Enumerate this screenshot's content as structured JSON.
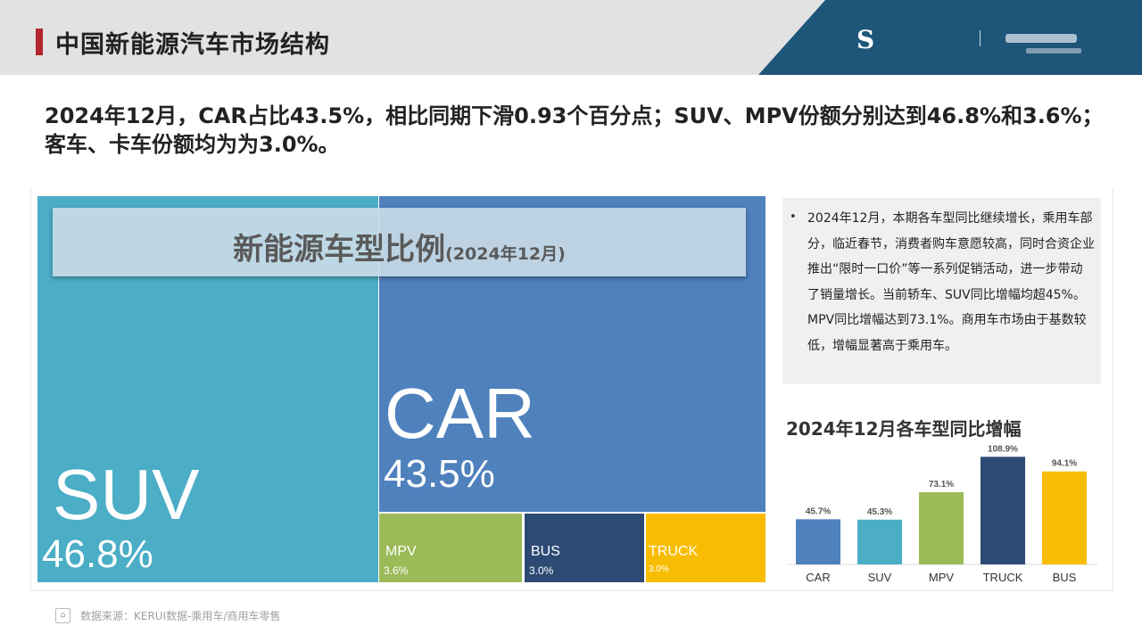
{
  "header": {
    "title": "中国新能源汽车市场结构",
    "logo_mark": "S"
  },
  "headline": "2024年12月，CAR占比43.5%，相比同期下滑0.93个百分点；SUV、MPV份额分别达到46.8%和3.6%；客车、卡车份额均为为3.0%。",
  "treemap": {
    "title": "新能源车型比例",
    "subtitle": "(2024年12月)",
    "tiles": [
      {
        "name": "SUV",
        "pct": "46.8%",
        "value": 46.8,
        "color": "#4badc6"
      },
      {
        "name": "CAR",
        "pct": "43.5%",
        "value": 43.5,
        "color": "#4f81bd"
      },
      {
        "name": "MPV",
        "pct": "3.6%",
        "value": 3.6,
        "color": "#9bbb59"
      },
      {
        "name": "BUS",
        "pct": "3.0%",
        "value": 3.0,
        "color": "#2c4a74"
      },
      {
        "name": "TRUCK",
        "pct": "3.0%",
        "value": 3.0,
        "color": "#f8bd02"
      }
    ]
  },
  "note": {
    "text": "2024年12月，本期各车型同比继续增长，乘用车部分，临近春节，消费者购车意愿较高，同时合资企业推出“限时一口价”等一系列促销活动，进一步带动了销量增长。当前轿车、SUV同比增幅均超45%。MPV同比增幅达到73.1%。商用车市场由于基数较低，增幅显著高于乘用车。"
  },
  "chart_data": [
    {
      "type": "heatmap",
      "title": "新能源车型比例",
      "subtitle": "(2024年12月)",
      "categories": [
        "SUV",
        "CAR",
        "MPV",
        "BUS",
        "TRUCK"
      ],
      "values": [
        46.8,
        43.5,
        3.6,
        3.0,
        3.0
      ]
    },
    {
      "type": "bar",
      "title": "2024年12月各车型同比增幅",
      "categories": [
        "CAR",
        "SUV",
        "MPV",
        "TRUCK",
        "BUS"
      ],
      "values": [
        45.7,
        45.3,
        73.1,
        108.9,
        94.1
      ],
      "labels": [
        "45.7%",
        "45.3%",
        "73.1%",
        "108.9%",
        "94.1%"
      ],
      "colors": [
        "#4f81bd",
        "#4badc6",
        "#9bbb59",
        "#2c4a74",
        "#f8bd02"
      ],
      "ylim": [
        0,
        120
      ],
      "grid": false
    }
  ],
  "source": "数据来源：KERUI数据-乘用车/商用车零售"
}
